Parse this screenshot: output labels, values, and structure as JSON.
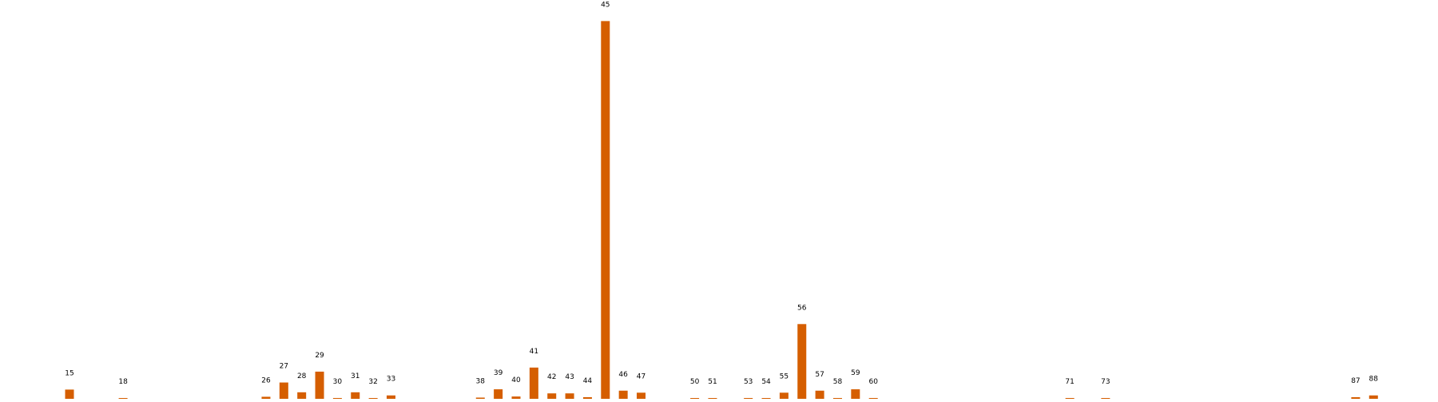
{
  "chart_data": {
    "type": "bar",
    "bar_color": "#d55e00",
    "x_range": [
      0,
      100
    ],
    "ylim": [
      0,
      2800
    ],
    "axes_visible": false,
    "grid": false,
    "categories": [
      "15",
      "18",
      "26",
      "27",
      "28",
      "29",
      "30",
      "31",
      "32",
      "33",
      "38",
      "39",
      "40",
      "41",
      "42",
      "43",
      "44",
      "45",
      "46",
      "47",
      "50",
      "51",
      "53",
      "54",
      "55",
      "56",
      "57",
      "58",
      "59",
      "60",
      "71",
      "73",
      "87",
      "88"
    ],
    "values": [
      68,
      2,
      15,
      120,
      48,
      200,
      6,
      48,
      3,
      25,
      9,
      70,
      17,
      230,
      40,
      40,
      12,
      2780,
      60,
      45,
      1,
      1,
      6,
      1,
      45,
      550,
      60,
      6,
      70,
      6,
      6,
      1,
      12,
      25
    ]
  }
}
